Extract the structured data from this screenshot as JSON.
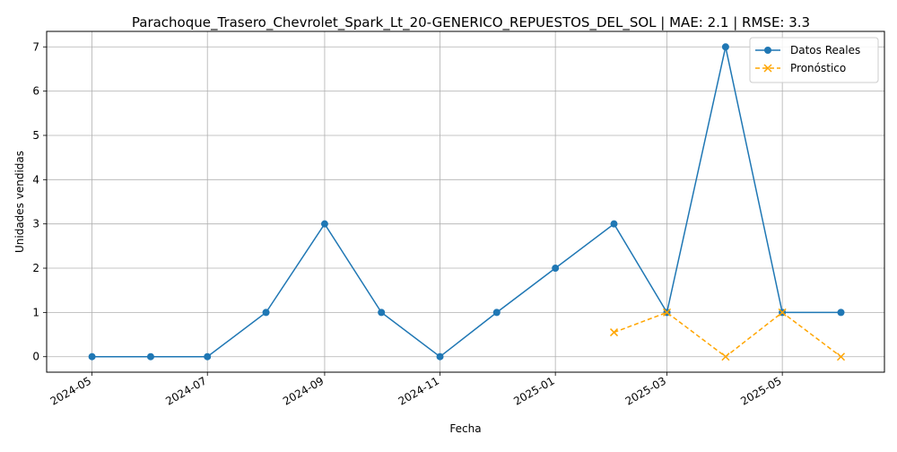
{
  "chart_data": {
    "type": "line",
    "title": "Parachoque_Trasero_Chevrolet_Spark_Lt_20-GENERICO_REPUESTOS_DEL_SOL | MAE: 2.1 | RMSE: 3.3",
    "xlabel": "Fecha",
    "ylabel": "Unidades vendidas",
    "xlim": [
      "2024-04-07",
      "2025-06-24"
    ],
    "ylim": [
      -0.35,
      7.35
    ],
    "x_ticks": [
      "2024-05",
      "2024-07",
      "2024-09",
      "2024-11",
      "2025-01",
      "2025-03",
      "2025-05"
    ],
    "y_ticks": [
      0,
      1,
      2,
      3,
      4,
      5,
      6,
      7
    ],
    "grid": true,
    "legend_position": "top-right",
    "series": [
      {
        "name": "Datos Reales",
        "color": "#1f77b4",
        "line_style": "solid",
        "marker": "circle",
        "points": [
          {
            "x": "2024-05-01",
            "y": 0
          },
          {
            "x": "2024-06-01",
            "y": 0
          },
          {
            "x": "2024-07-01",
            "y": 0
          },
          {
            "x": "2024-08-01",
            "y": 1
          },
          {
            "x": "2024-09-01",
            "y": 3
          },
          {
            "x": "2024-10-01",
            "y": 1
          },
          {
            "x": "2024-11-01",
            "y": 0
          },
          {
            "x": "2024-12-01",
            "y": 1
          },
          {
            "x": "2025-01-01",
            "y": 2
          },
          {
            "x": "2025-02-01",
            "y": 3
          },
          {
            "x": "2025-03-01",
            "y": 1
          },
          {
            "x": "2025-04-01",
            "y": 7
          },
          {
            "x": "2025-05-01",
            "y": 1
          },
          {
            "x": "2025-06-01",
            "y": 1
          }
        ]
      },
      {
        "name": "Pronóstico",
        "color": "#ffa500",
        "line_style": "dashed",
        "marker": "x",
        "points": [
          {
            "x": "2025-02-01",
            "y": 0.55
          },
          {
            "x": "2025-03-01",
            "y": 1
          },
          {
            "x": "2025-04-01",
            "y": 0
          },
          {
            "x": "2025-05-01",
            "y": 1
          },
          {
            "x": "2025-06-01",
            "y": 0
          }
        ]
      }
    ]
  }
}
